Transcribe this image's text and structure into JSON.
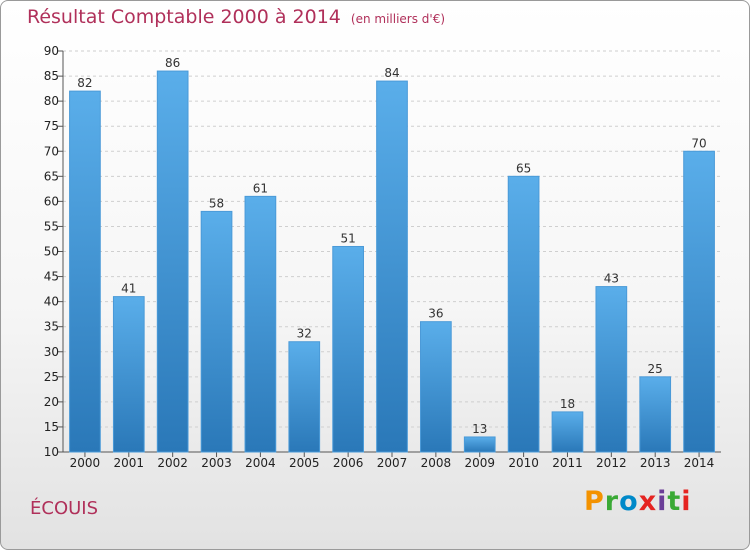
{
  "header": {
    "title": "Résultat Comptable 2000 à 2014",
    "subtitle": "(en milliers d'€)"
  },
  "commune": "ÉCOUIS",
  "logo": {
    "text": "Proxiti",
    "letters": [
      "P",
      "r",
      "o",
      "x",
      "i",
      "t",
      "i"
    ],
    "colors": [
      "#f39200",
      "#3aa935",
      "#0089c9",
      "#e52421",
      "#6b3e98",
      "#3aa935",
      "#e52421"
    ]
  },
  "colors": {
    "accent": "#b0305a",
    "bar_top": "#5aaeea",
    "bar_bottom": "#2a78b8",
    "grid": "#cfcfcf"
  },
  "chart_data": {
    "type": "bar",
    "title": "Résultat Comptable 2000 à 2014",
    "subtitle": "(en milliers d'€)",
    "xlabel": "",
    "ylabel": "",
    "categories": [
      "2000",
      "2001",
      "2002",
      "2003",
      "2004",
      "2005",
      "2006",
      "2007",
      "2008",
      "2009",
      "2010",
      "2011",
      "2012",
      "2013",
      "2014"
    ],
    "values": [
      82,
      41,
      86,
      58,
      61,
      32,
      51,
      84,
      36,
      13,
      65,
      18,
      43,
      25,
      70
    ],
    "ylim": [
      10,
      90
    ],
    "yticks": [
      10,
      15,
      20,
      25,
      30,
      35,
      40,
      45,
      50,
      55,
      60,
      65,
      70,
      75,
      80,
      85,
      90
    ],
    "grid": true,
    "legend": "none"
  }
}
